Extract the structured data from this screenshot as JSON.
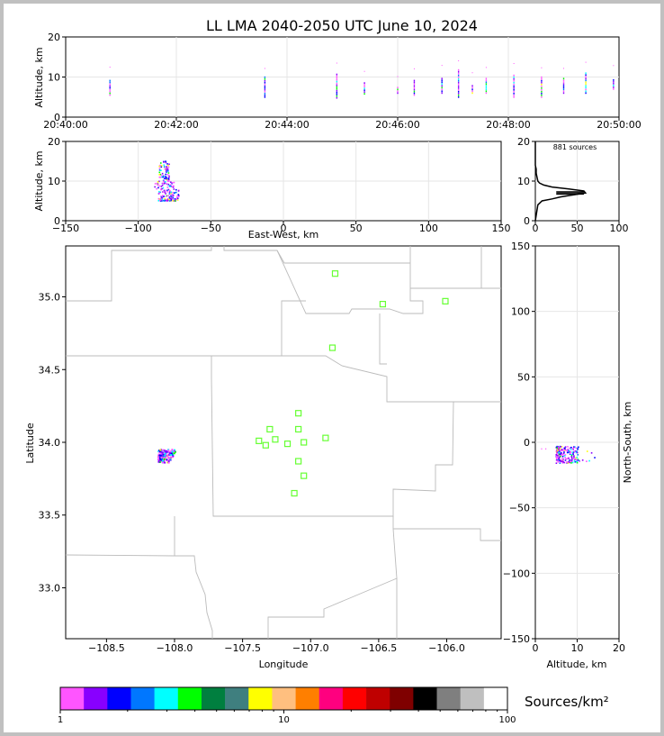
{
  "title": "LL LMA 2040-2050 UTC June 10, 2024",
  "chart_data": [
    {
      "panel": "altitude-vs-time",
      "type": "scatter",
      "ylabel": "Altitude, km",
      "ylim": [
        0,
        20
      ],
      "yticks": [
        "0",
        "10",
        "20"
      ],
      "xlim": [
        "20:40:00",
        "20:50:00"
      ],
      "xticks": [
        "20:40:00",
        "20:42:00",
        "20:44:00",
        "20:46:00",
        "20:48:00",
        "20:50:00"
      ],
      "grid": true,
      "bursts": [
        {
          "t": "20:40:48",
          "alt": [
            5.5,
            9.5
          ]
        },
        {
          "t": "20:43:36",
          "alt": [
            5.0,
            10.0
          ]
        },
        {
          "t": "20:44:54",
          "alt": [
            4.8,
            11.0
          ]
        },
        {
          "t": "20:45:24",
          "alt": [
            5.8,
            8.5
          ]
        },
        {
          "t": "20:46:00",
          "alt": [
            6.0,
            7.5
          ]
        },
        {
          "t": "20:46:18",
          "alt": [
            5.5,
            9.5
          ]
        },
        {
          "t": "20:46:48",
          "alt": [
            6.0,
            10.0
          ]
        },
        {
          "t": "20:47:06",
          "alt": [
            5.0,
            12.0
          ]
        },
        {
          "t": "20:47:21",
          "alt": [
            6.0,
            8.0
          ]
        },
        {
          "t": "20:47:36",
          "alt": [
            6.0,
            10.0
          ]
        },
        {
          "t": "20:48:06",
          "alt": [
            5.0,
            10.5
          ]
        },
        {
          "t": "20:48:36",
          "alt": [
            5.0,
            10.0
          ]
        },
        {
          "t": "20:49:00",
          "alt": [
            6.0,
            10.0
          ]
        },
        {
          "t": "20:49:24",
          "alt": [
            6.0,
            11.0
          ]
        },
        {
          "t": "20:49:54",
          "alt": [
            7.0,
            9.5
          ]
        }
      ]
    },
    {
      "panel": "altitude-vs-east-west",
      "type": "scatter",
      "xlabel": "East-West, km",
      "ylabel": "Altitude, km",
      "xlim": [
        -150,
        150
      ],
      "ylim": [
        0,
        20
      ],
      "xticks": [
        "−150",
        "−100",
        "−50",
        "0",
        "50",
        "100",
        "150"
      ],
      "yticks": [
        "0",
        "10",
        "20"
      ],
      "grid": true,
      "cluster": {
        "x": [
          -86,
          -72
        ],
        "alt": [
          5,
          15
        ]
      }
    },
    {
      "panel": "altitude-histogram",
      "type": "line",
      "annotation": "881 sources",
      "xlim": [
        0,
        100
      ],
      "ylim": [
        0,
        20
      ],
      "xticks": [
        "0",
        "50",
        "100"
      ],
      "yticks": [
        "0",
        "10",
        "20"
      ],
      "profile": [
        [
          0,
          0
        ],
        [
          3,
          4
        ],
        [
          8,
          5
        ],
        [
          20,
          5.5
        ],
        [
          30,
          6
        ],
        [
          45,
          6.5
        ],
        [
          60,
          7
        ],
        [
          58,
          7.5
        ],
        [
          40,
          8
        ],
        [
          20,
          8.5
        ],
        [
          10,
          9
        ],
        [
          5,
          9.5
        ],
        [
          3,
          10
        ],
        [
          2,
          11
        ],
        [
          1,
          12
        ],
        [
          1,
          13
        ],
        [
          0,
          14
        ],
        [
          0,
          20
        ]
      ]
    },
    {
      "panel": "plan-view-map",
      "type": "scatter",
      "xlabel": "Longitude",
      "ylabel": "Latitude",
      "right_ylabel": "North-South, km",
      "xlim": [
        -108.8,
        -105.6
      ],
      "ylim": [
        32.65,
        35.35
      ],
      "xticks": [
        "−108.5",
        "−108.0",
        "−107.5",
        "−107.0",
        "−106.5",
        "−106.0"
      ],
      "yticks": [
        "33.0",
        "33.5",
        "34.0",
        "34.5",
        "35.0"
      ],
      "right_yticks": [
        "−150",
        "−100",
        "−50",
        "0",
        "50",
        "100",
        "150"
      ],
      "stations": [
        {
          "lon": -106.82,
          "lat": 35.16
        },
        {
          "lon": -106.47,
          "lat": 34.95
        },
        {
          "lon": -106.01,
          "lat": 34.97
        },
        {
          "lon": -106.84,
          "lat": 34.65
        },
        {
          "lon": -107.09,
          "lat": 34.2
        },
        {
          "lon": -107.3,
          "lat": 34.09
        },
        {
          "lon": -107.09,
          "lat": 34.09
        },
        {
          "lon": -107.38,
          "lat": 34.01
        },
        {
          "lon": -107.26,
          "lat": 34.02
        },
        {
          "lon": -107.33,
          "lat": 33.98
        },
        {
          "lon": -107.17,
          "lat": 33.99
        },
        {
          "lon": -107.05,
          "lat": 34.0
        },
        {
          "lon": -106.89,
          "lat": 34.03
        },
        {
          "lon": -107.09,
          "lat": 33.87
        },
        {
          "lon": -107.05,
          "lat": 33.77
        },
        {
          "lon": -107.12,
          "lat": 33.65
        }
      ],
      "cluster": {
        "lon": [
          -108.12,
          -107.98
        ],
        "lat": [
          33.86,
          33.95
        ]
      }
    },
    {
      "panel": "north-south-vs-altitude",
      "type": "scatter",
      "xlabel": "Altitude, km",
      "ylabel": "North-South, km",
      "xlim": [
        0,
        20
      ],
      "ylim": [
        -150,
        150
      ],
      "xticks": [
        "0",
        "10",
        "20"
      ],
      "yticks": [
        "−150",
        "−100",
        "−50",
        "0",
        "50",
        "100",
        "150"
      ],
      "grid": true,
      "cluster": {
        "alt": [
          1,
          16
        ],
        "ns": [
          -16,
          -3
        ]
      }
    }
  ],
  "colorbar": {
    "label": "Sources/km²",
    "ticks": [
      "1",
      "10",
      "100"
    ],
    "colors": [
      "#ff55ff",
      "#8800ff",
      "#0000ff",
      "#0077ff",
      "#00ffff",
      "#00ff00",
      "#007f3f",
      "#3f7f7f",
      "#ffff00",
      "#ffbf7f",
      "#ff7f00",
      "#ff007f",
      "#ff0000",
      "#bf0000",
      "#7f0000",
      "#000000",
      "#7f7f7f",
      "#bfbfbf",
      "#ffffff"
    ]
  }
}
